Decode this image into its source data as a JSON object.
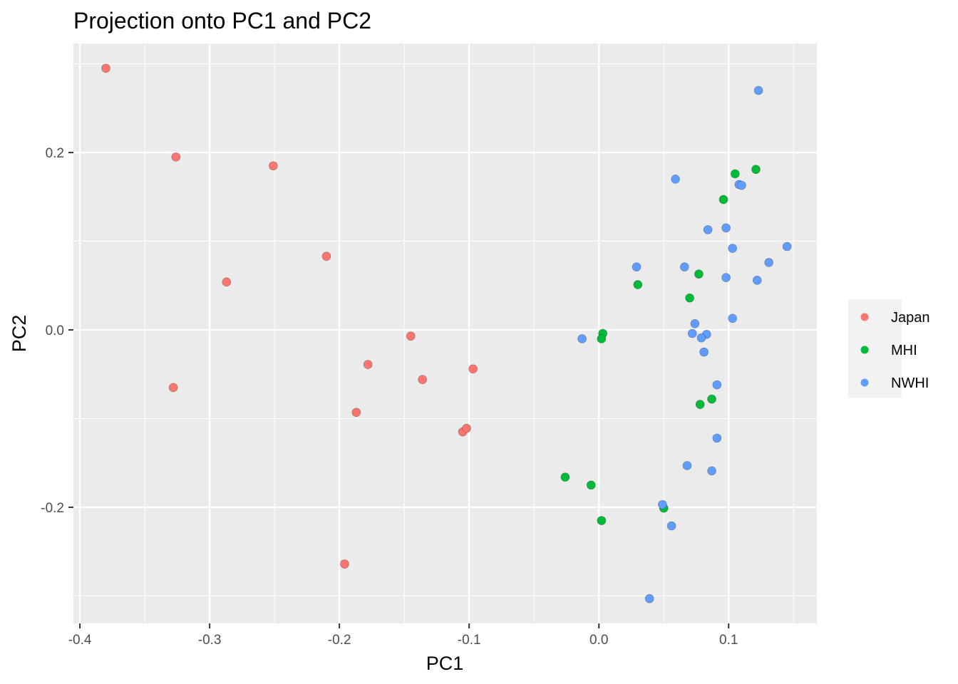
{
  "chart_data": {
    "type": "scatter",
    "title": "Projection onto PC1 and PC2",
    "xlabel": "PC1",
    "ylabel": "PC2",
    "xlim": [
      -0.405,
      0.168
    ],
    "ylim": [
      -0.331,
      0.323
    ],
    "x_ticks": [
      -0.4,
      -0.3,
      -0.2,
      -0.1,
      0.0,
      0.1
    ],
    "x_tick_labels": [
      "-0.4",
      "-0.3",
      "-0.2",
      "-0.1",
      "0.0",
      "0.1"
    ],
    "y_ticks": [
      -0.2,
      0.0,
      0.2
    ],
    "y_tick_labels": [
      "-0.2",
      "0.0",
      "0.2"
    ],
    "grid": true,
    "legend_position": "right",
    "series": [
      {
        "name": "Japan",
        "color": "#F8766D",
        "points": [
          [
            -0.38,
            0.295
          ],
          [
            -0.326,
            0.195
          ],
          [
            -0.251,
            0.185
          ],
          [
            -0.21,
            0.083
          ],
          [
            -0.287,
            0.054
          ],
          [
            -0.328,
            -0.065
          ],
          [
            -0.145,
            -0.007
          ],
          [
            -0.178,
            -0.039
          ],
          [
            -0.136,
            -0.056
          ],
          [
            -0.097,
            -0.044
          ],
          [
            -0.187,
            -0.093
          ],
          [
            -0.105,
            -0.115
          ],
          [
            -0.102,
            -0.111
          ],
          [
            -0.196,
            -0.264
          ]
        ]
      },
      {
        "name": "MHI",
        "color": "#00BA38",
        "points": [
          [
            0.121,
            0.181
          ],
          [
            0.105,
            0.176
          ],
          [
            0.096,
            0.147
          ],
          [
            0.077,
            0.063
          ],
          [
            0.03,
            0.051
          ],
          [
            0.07,
            0.036
          ],
          [
            0.003,
            -0.004
          ],
          [
            0.002,
            -0.01
          ],
          [
            0.087,
            -0.078
          ],
          [
            0.078,
            -0.084
          ],
          [
            -0.026,
            -0.166
          ],
          [
            -0.006,
            -0.175
          ],
          [
            0.05,
            -0.201
          ],
          [
            0.002,
            -0.215
          ]
        ]
      },
      {
        "name": "NWHI",
        "color": "#619CFF",
        "points": [
          [
            0.123,
            0.27
          ],
          [
            0.059,
            0.17
          ],
          [
            0.108,
            0.164
          ],
          [
            0.11,
            0.163
          ],
          [
            0.084,
            0.113
          ],
          [
            0.098,
            0.115
          ],
          [
            0.103,
            0.092
          ],
          [
            0.145,
            0.094
          ],
          [
            0.029,
            0.071
          ],
          [
            0.066,
            0.071
          ],
          [
            0.131,
            0.076
          ],
          [
            0.098,
            0.059
          ],
          [
            0.122,
            0.056
          ],
          [
            0.103,
            0.013
          ],
          [
            0.074,
            0.007
          ],
          [
            0.072,
            -0.004
          ],
          [
            0.083,
            -0.005
          ],
          [
            0.079,
            -0.009
          ],
          [
            -0.013,
            -0.01
          ],
          [
            0.081,
            -0.025
          ],
          [
            0.091,
            -0.062
          ],
          [
            0.091,
            -0.122
          ],
          [
            0.068,
            -0.153
          ],
          [
            0.087,
            -0.159
          ],
          [
            0.049,
            -0.197
          ],
          [
            0.056,
            -0.221
          ],
          [
            0.039,
            -0.303
          ]
        ]
      }
    ]
  }
}
